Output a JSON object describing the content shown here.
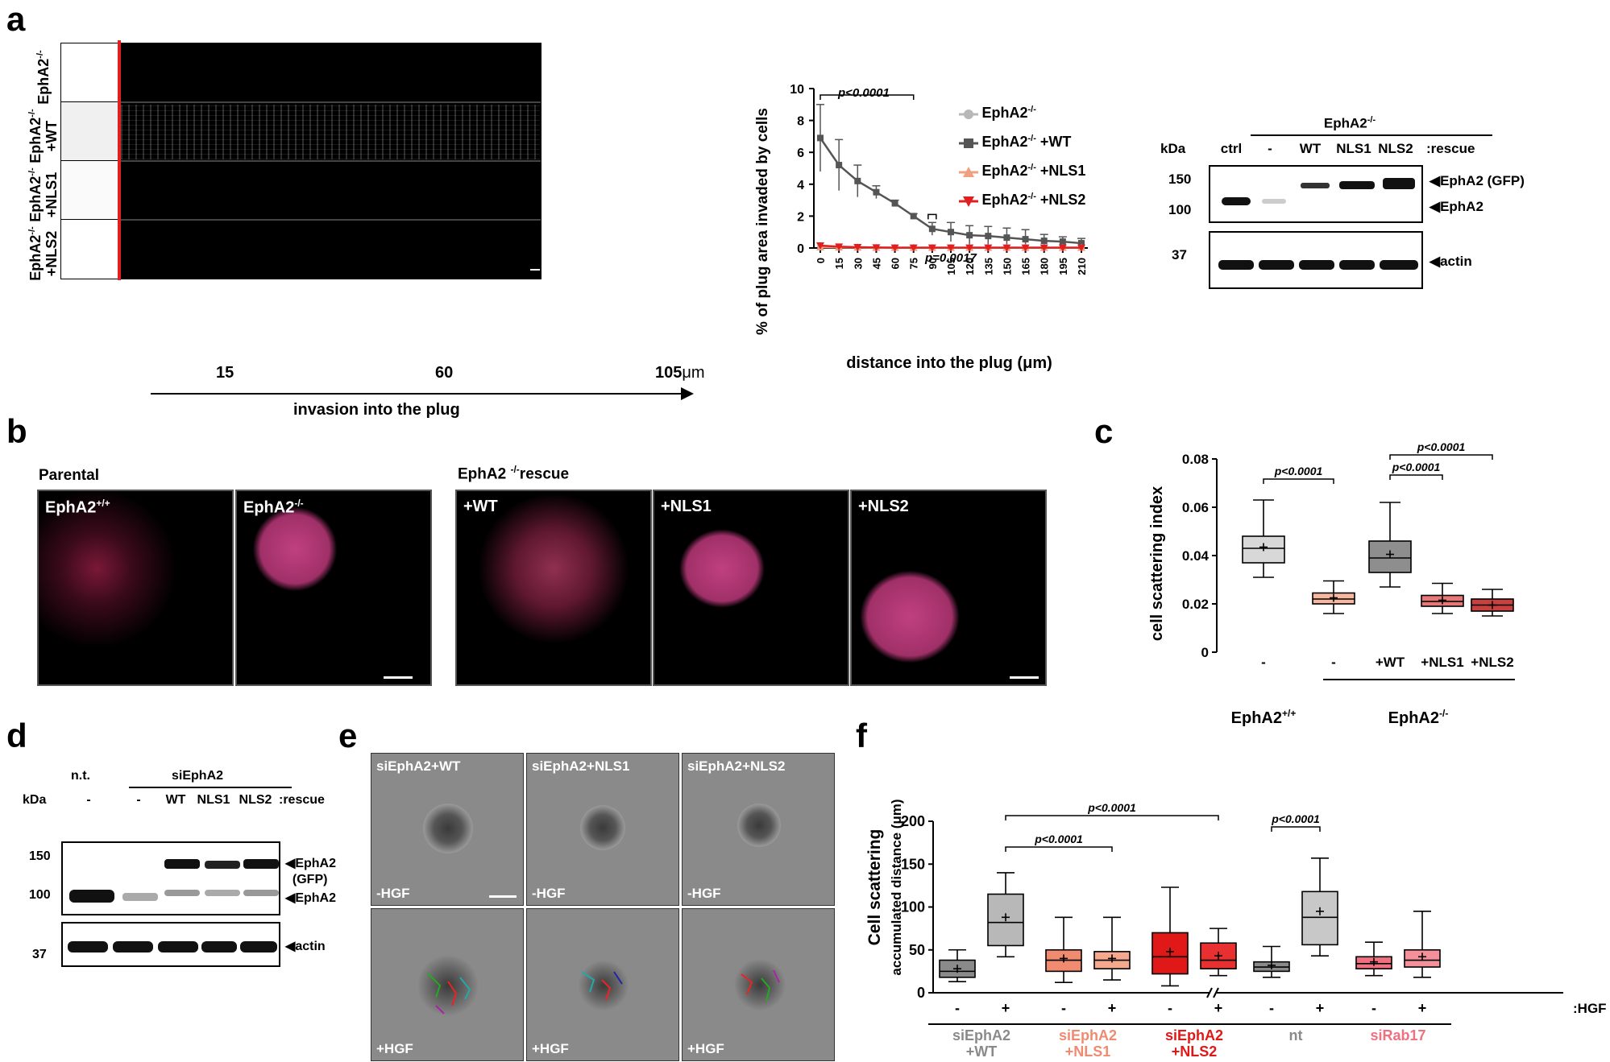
{
  "panels": {
    "a": "a",
    "b": "b",
    "c": "c",
    "d": "d",
    "e": "e",
    "f": "f"
  },
  "a_images": {
    "rows": [
      {
        "l1": "EphA2",
        "s1": "-/-",
        "l2": ""
      },
      {
        "l1": "EphA2",
        "s1": "-/-",
        "l2": "+WT"
      },
      {
        "l1": "EphA2",
        "s1": "-/-",
        "l2": "+NLS1"
      },
      {
        "l1": "EphA2",
        "s1": "-/-",
        "l2": "+NLS2"
      }
    ],
    "ticks": [
      "15",
      "60",
      "105"
    ],
    "unit": "μm",
    "arrow_label": "invasion into the plug"
  },
  "a_chart": {
    "ylabel": "% of plug area invaded by cells",
    "xlabel": "distance into the plug (μm)",
    "p1": "p<0.0001",
    "p2": "p=0.0017"
  },
  "a_legend": [
    {
      "name": "EphA2",
      "sup": "-/-",
      "suffix": "",
      "color": "#b8b8b8",
      "marker": "circle"
    },
    {
      "name": "EphA2",
      "sup": "-/-",
      "suffix": " +WT",
      "color": "#555555",
      "marker": "square"
    },
    {
      "name": "EphA2",
      "sup": "-/-",
      "suffix": " +NLS1",
      "color": "#f0a080",
      "marker": "tri-up"
    },
    {
      "name": "EphA2",
      "sup": "-/-",
      "suffix": " +NLS2",
      "color": "#e02020",
      "marker": "tri-down"
    }
  ],
  "a_blot": {
    "kda": "kDa",
    "header": "EphA2",
    "header_sup": "-/-",
    "lanes": [
      "ctrl",
      "-",
      "WT",
      "NLS1",
      "NLS2"
    ],
    "rescue": ":rescue",
    "markers": [
      "150",
      "100",
      "37"
    ],
    "bands": [
      "EphA2 (GFP)",
      "EphA2",
      "actin"
    ]
  },
  "b": {
    "parental": "Parental",
    "rescue_l": "EphA2",
    "rescue_sup": "-/-",
    "rescue_r": "rescue",
    "images": [
      {
        "label": "EphA2",
        "sup": "+/+"
      },
      {
        "label": "EphA2",
        "sup": "-/-"
      },
      {
        "label": "+WT",
        "sup": ""
      },
      {
        "label": "+NLS1",
        "sup": ""
      },
      {
        "label": "+NLS2",
        "sup": ""
      }
    ]
  },
  "c": {
    "ylabel": "cell scattering index",
    "groups": [
      "-",
      "-",
      "+WT",
      "+NLS1",
      "+NLS2"
    ],
    "left": "EphA2",
    "left_sup": "+/+",
    "right": "EphA2",
    "right_sup": "-/-",
    "p": [
      "p<0.0001",
      "p<0.0001",
      "p<0.0001"
    ]
  },
  "d": {
    "kda": "kDa",
    "nt": "n.t.",
    "header": "siEphA2",
    "lanes": [
      "-",
      "-",
      "WT",
      "NLS1",
      "NLS2"
    ],
    "rescue": ":rescue",
    "markers": [
      "150",
      "100",
      "37"
    ],
    "bands": [
      "EphA2",
      "(GFP)",
      "EphA2",
      "actin"
    ]
  },
  "e": {
    "top": [
      "siEphA2+WT",
      "siEphA2+NLS1",
      "siEphA2+NLS2"
    ],
    "minus": "-HGF",
    "plus": "+HGF"
  },
  "f": {
    "ylabel1": "Cell scattering",
    "ylabel2": "accumulated distance (μm)",
    "hgf": ":HGF",
    "pm": [
      "-",
      "+",
      "-",
      "+",
      "-",
      "+",
      "-",
      "+",
      "-",
      "+"
    ],
    "groups": [
      {
        "l1": "siEphA2",
        "l2": "+WT",
        "color": "#8a8a8a"
      },
      {
        "l1": "siEphA2",
        "l2": "+NLS1",
        "color": "#f08a70"
      },
      {
        "l1": "siEphA2",
        "l2": "+NLS2",
        "color": "#e01818"
      },
      {
        "l1": "nt",
        "l2": "",
        "color": "#8a8a8a"
      },
      {
        "l1": "siRab17",
        "l2": "",
        "color": "#f07080"
      }
    ],
    "p": [
      "p<0.0001",
      "p<0.0001",
      "p<0.0001"
    ]
  },
  "chart_data": [
    {
      "type": "line",
      "xlabel": "distance into the plug (μm)",
      "ylabel": "% of plug area invaded by cells",
      "x": [
        0,
        15,
        30,
        45,
        60,
        75,
        90,
        105,
        120,
        135,
        150,
        165,
        180,
        195,
        210
      ],
      "ylim": [
        0,
        10
      ],
      "yticks": [
        0,
        2,
        4,
        6,
        8,
        10
      ],
      "series": [
        {
          "name": "EphA2-/-",
          "values": [
            0.1,
            0.05,
            0.03,
            0.02,
            0.02,
            0.02,
            0.02,
            0.02,
            0.02,
            0.02,
            0.02,
            0.02,
            0.02,
            0.02,
            0.02
          ]
        },
        {
          "name": "EphA2-/- +WT",
          "values": [
            6.9,
            5.2,
            4.2,
            3.5,
            2.8,
            2.0,
            1.2,
            1.0,
            0.8,
            0.75,
            0.65,
            0.55,
            0.45,
            0.4,
            0.3
          ],
          "err": [
            2.1,
            1.6,
            1.0,
            0.4,
            0.2,
            0.15,
            0.4,
            0.6,
            0.6,
            0.6,
            0.6,
            0.6,
            0.4,
            0.3,
            0.3
          ]
        },
        {
          "name": "EphA2-/- +NLS1",
          "values": [
            0.05,
            0.04,
            0.03,
            0.02,
            0.02,
            0.02,
            0.02,
            0.02,
            0.02,
            0.02,
            0.02,
            0.02,
            0.02,
            0.02,
            0.02
          ]
        },
        {
          "name": "EphA2-/- +NLS2",
          "values": [
            0.15,
            0.08,
            0.05,
            0.03,
            0.02,
            0.02,
            0.02,
            0.02,
            0.02,
            0.02,
            0.02,
            0.02,
            0.02,
            0.02,
            0.02
          ]
        }
      ]
    },
    {
      "type": "box",
      "ylabel": "cell scattering index",
      "ylim": [
        0,
        0.08
      ],
      "yticks": [
        0,
        0.02,
        0.04,
        0.06,
        0.08
      ],
      "categories": [
        "EphA2+/+ -",
        "EphA2-/- -",
        "EphA2-/- +WT",
        "EphA2-/- +NLS1",
        "EphA2-/- +NLS2"
      ],
      "boxes": [
        {
          "min": 0.031,
          "q1": 0.037,
          "med": 0.043,
          "q3": 0.048,
          "max": 0.063,
          "mean": 0.0435,
          "color": "#d8d8d8"
        },
        {
          "min": 0.016,
          "q1": 0.02,
          "med": 0.022,
          "q3": 0.0245,
          "max": 0.0295,
          "mean": 0.0225,
          "color": "#f8b8a0"
        },
        {
          "min": 0.027,
          "q1": 0.033,
          "med": 0.039,
          "q3": 0.046,
          "max": 0.062,
          "mean": 0.0405,
          "color": "#8e8e8e"
        },
        {
          "min": 0.016,
          "q1": 0.019,
          "med": 0.021,
          "q3": 0.0235,
          "max": 0.0285,
          "mean": 0.0215,
          "color": "#e87878"
        },
        {
          "min": 0.015,
          "q1": 0.017,
          "med": 0.0195,
          "q3": 0.022,
          "max": 0.026,
          "mean": 0.0195,
          "color": "#c84040"
        }
      ]
    },
    {
      "type": "box",
      "ylabel": "Cell scattering accumulated distance (μm)",
      "ylim": [
        0,
        200
      ],
      "yticks": [
        0,
        50,
        100,
        150,
        200
      ],
      "categories": [
        "siEphA2+WT -",
        "siEphA2+WT +",
        "siEphA2+NLS1 -",
        "siEphA2+NLS1 +",
        "siEphA2+NLS2 -",
        "siEphA2+NLS2 +",
        "nt -",
        "nt +",
        "siRab17 -",
        "siRab17 +"
      ],
      "boxes": [
        {
          "min": 13,
          "q1": 18,
          "med": 25,
          "q3": 38,
          "max": 50,
          "mean": 28,
          "color": "#8a8a8a"
        },
        {
          "min": 42,
          "q1": 55,
          "med": 82,
          "q3": 115,
          "max": 140,
          "mean": 88,
          "color": "#b8b8b8"
        },
        {
          "min": 12,
          "q1": 25,
          "med": 38,
          "q3": 50,
          "max": 88,
          "mean": 40,
          "color": "#f08a70"
        },
        {
          "min": 15,
          "q1": 28,
          "med": 38,
          "q3": 48,
          "max": 88,
          "mean": 40,
          "color": "#f4a88e"
        },
        {
          "min": 8,
          "q1": 22,
          "med": 42,
          "q3": 70,
          "max": 123,
          "mean": 48,
          "color": "#e01818"
        },
        {
          "min": 20,
          "q1": 28,
          "med": 38,
          "q3": 58,
          "max": 75,
          "mean": 43,
          "color": "#e83030"
        },
        {
          "min": 18,
          "q1": 25,
          "med": 30,
          "q3": 36,
          "max": 54,
          "mean": 32,
          "color": "#8a8a8a"
        },
        {
          "min": 43,
          "q1": 56,
          "med": 88,
          "q3": 118,
          "max": 157,
          "mean": 95,
          "color": "#c8c8c8"
        },
        {
          "min": 20,
          "q1": 28,
          "med": 34,
          "q3": 42,
          "max": 59,
          "mean": 36,
          "color": "#f07080"
        },
        {
          "min": 18,
          "q1": 30,
          "med": 38,
          "q3": 50,
          "max": 95,
          "mean": 42,
          "color": "#f4909a"
        }
      ]
    }
  ]
}
